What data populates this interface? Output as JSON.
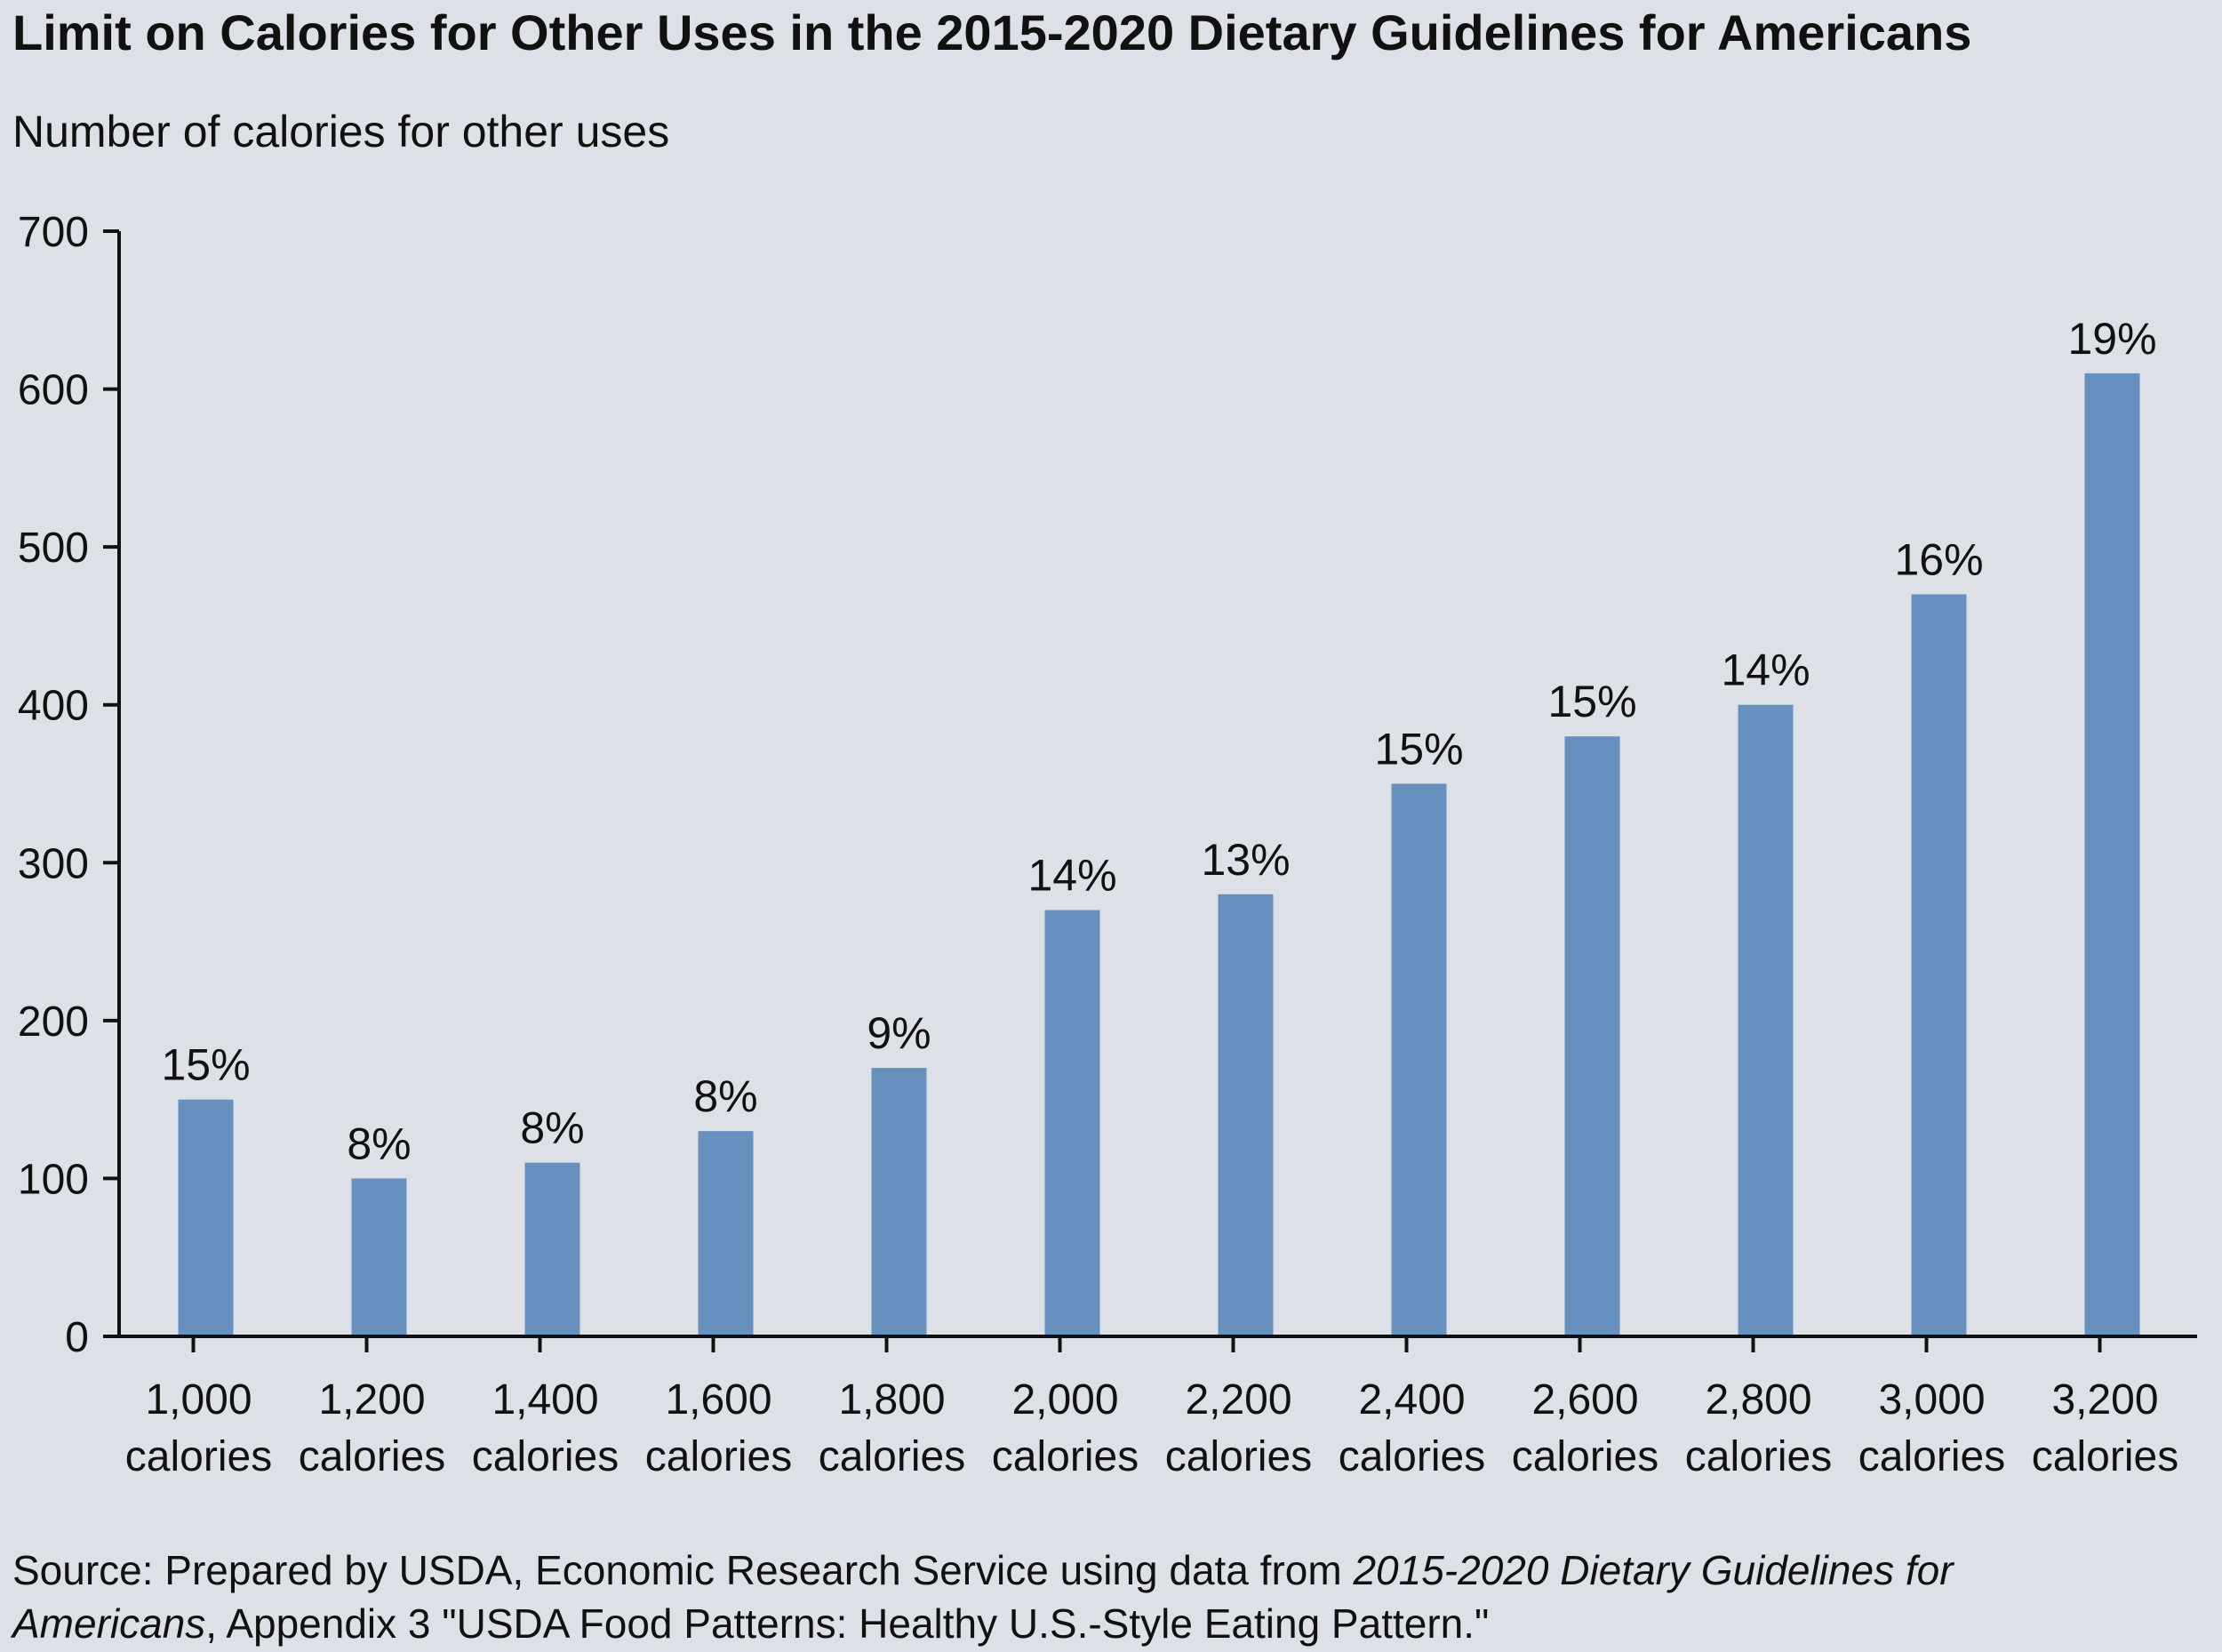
{
  "chart_data": {
    "type": "bar",
    "title": "Limit on Calories for Other Uses in the 2015-2020 Dietary Guidelines for Americans",
    "ylabel": "Number of calories for other uses",
    "xlabel": "",
    "ylim": [
      0,
      700
    ],
    "yticks": [
      0,
      100,
      200,
      300,
      400,
      500,
      600,
      700
    ],
    "categories": [
      [
        "1,000",
        "calories"
      ],
      [
        "1,200",
        "calories"
      ],
      [
        "1,400",
        "calories"
      ],
      [
        "1,600",
        "calories"
      ],
      [
        "1,800",
        "calories"
      ],
      [
        "2,000",
        "calories"
      ],
      [
        "2,200",
        "calories"
      ],
      [
        "2,400",
        "calories"
      ],
      [
        "2,600",
        "calories"
      ],
      [
        "2,800",
        "calories"
      ],
      [
        "3,000",
        "calories"
      ],
      [
        "3,200",
        "calories"
      ]
    ],
    "values": [
      150,
      100,
      110,
      130,
      170,
      270,
      280,
      350,
      380,
      400,
      470,
      610
    ],
    "data_labels": [
      "15%",
      "8%",
      "8%",
      "8%",
      "9%",
      "14%",
      "13%",
      "15%",
      "15%",
      "14%",
      "16%",
      "19%"
    ],
    "bar_color": "#6890bf",
    "axis_color": "#111111",
    "grid": false,
    "legend": "none"
  },
  "source": {
    "prefix": "Source: Prepared by USDA, Economic Research Service using data from ",
    "italic1": "2015-2020 Dietary Guidelines for",
    "italic2": "Americans",
    "suffix": ", Appendix 3 \"USDA Food Patterns: Healthy U.S.-Style Eating Pattern.\""
  }
}
